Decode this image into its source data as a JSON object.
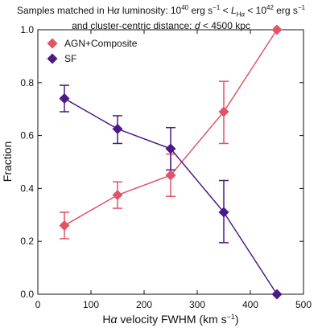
{
  "chart_data": {
    "type": "line",
    "title_line1": "Samples matched in Hα luminosity: 10⁴⁰ erg s⁻¹ < L_Hα < 10⁴² erg s⁻¹",
    "title_line2": "and cluster-centric distance: d < 4500 kpc",
    "xlabel": "Hα velocity FWHM (km s⁻¹)",
    "ylabel": "Fraction",
    "xlim": [
      0,
      500
    ],
    "ylim": [
      0.0,
      1.0
    ],
    "xticks": [
      0,
      100,
      200,
      300,
      400,
      500
    ],
    "yticks": [
      0.0,
      0.2,
      0.4,
      0.6,
      0.8,
      1.0
    ],
    "ytick_labels": [
      "0.0",
      "0.2",
      "0.4",
      "0.6",
      "0.8",
      "1.0"
    ],
    "legend_position": "top-left",
    "x": [
      50,
      150,
      250,
      350,
      450
    ],
    "series": [
      {
        "name": "AGN+Composite",
        "color": "#e05468",
        "marker": "diamond",
        "values": [
          0.26,
          0.375,
          0.45,
          0.69,
          1.0
        ],
        "err_low": [
          0.05,
          0.05,
          0.08,
          0.12,
          0.0
        ],
        "err_high": [
          0.05,
          0.05,
          0.08,
          0.115,
          0.0
        ]
      },
      {
        "name": "SF",
        "color": "#4b1a87",
        "marker": "diamond",
        "values": [
          0.74,
          0.625,
          0.55,
          0.31,
          0.0
        ],
        "err_low": [
          0.05,
          0.055,
          0.08,
          0.115,
          0.0
        ],
        "err_high": [
          0.05,
          0.05,
          0.08,
          0.12,
          0.0
        ]
      }
    ]
  }
}
